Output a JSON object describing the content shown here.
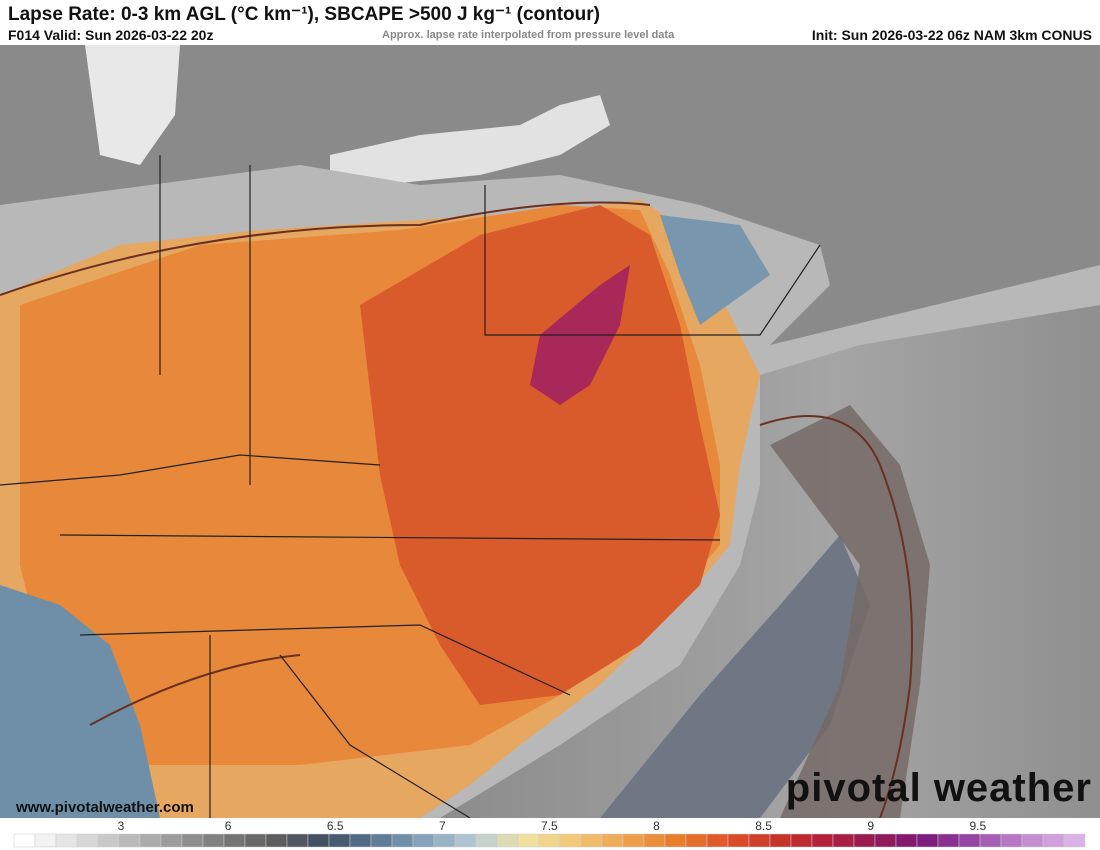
{
  "header": {
    "title": "Lapse Rate: 0-3 km AGL (°C km⁻¹), SBCAPE >500 J kg⁻¹ (contour)",
    "valid": "F014 Valid: Sun 2026-03-22 20z",
    "note": "Approx. lapse rate interpolated from pressure level data",
    "init": "Init: Sun 2026-03-22 06z NAM 3km CONUS"
  },
  "watermark": {
    "url": "www.pivotalweather.com",
    "brand": "pivotal weather"
  },
  "colorbar": {
    "labels": [
      3,
      6,
      6.5,
      7,
      7.5,
      8,
      8.5,
      9,
      9.5
    ]
  }
}
